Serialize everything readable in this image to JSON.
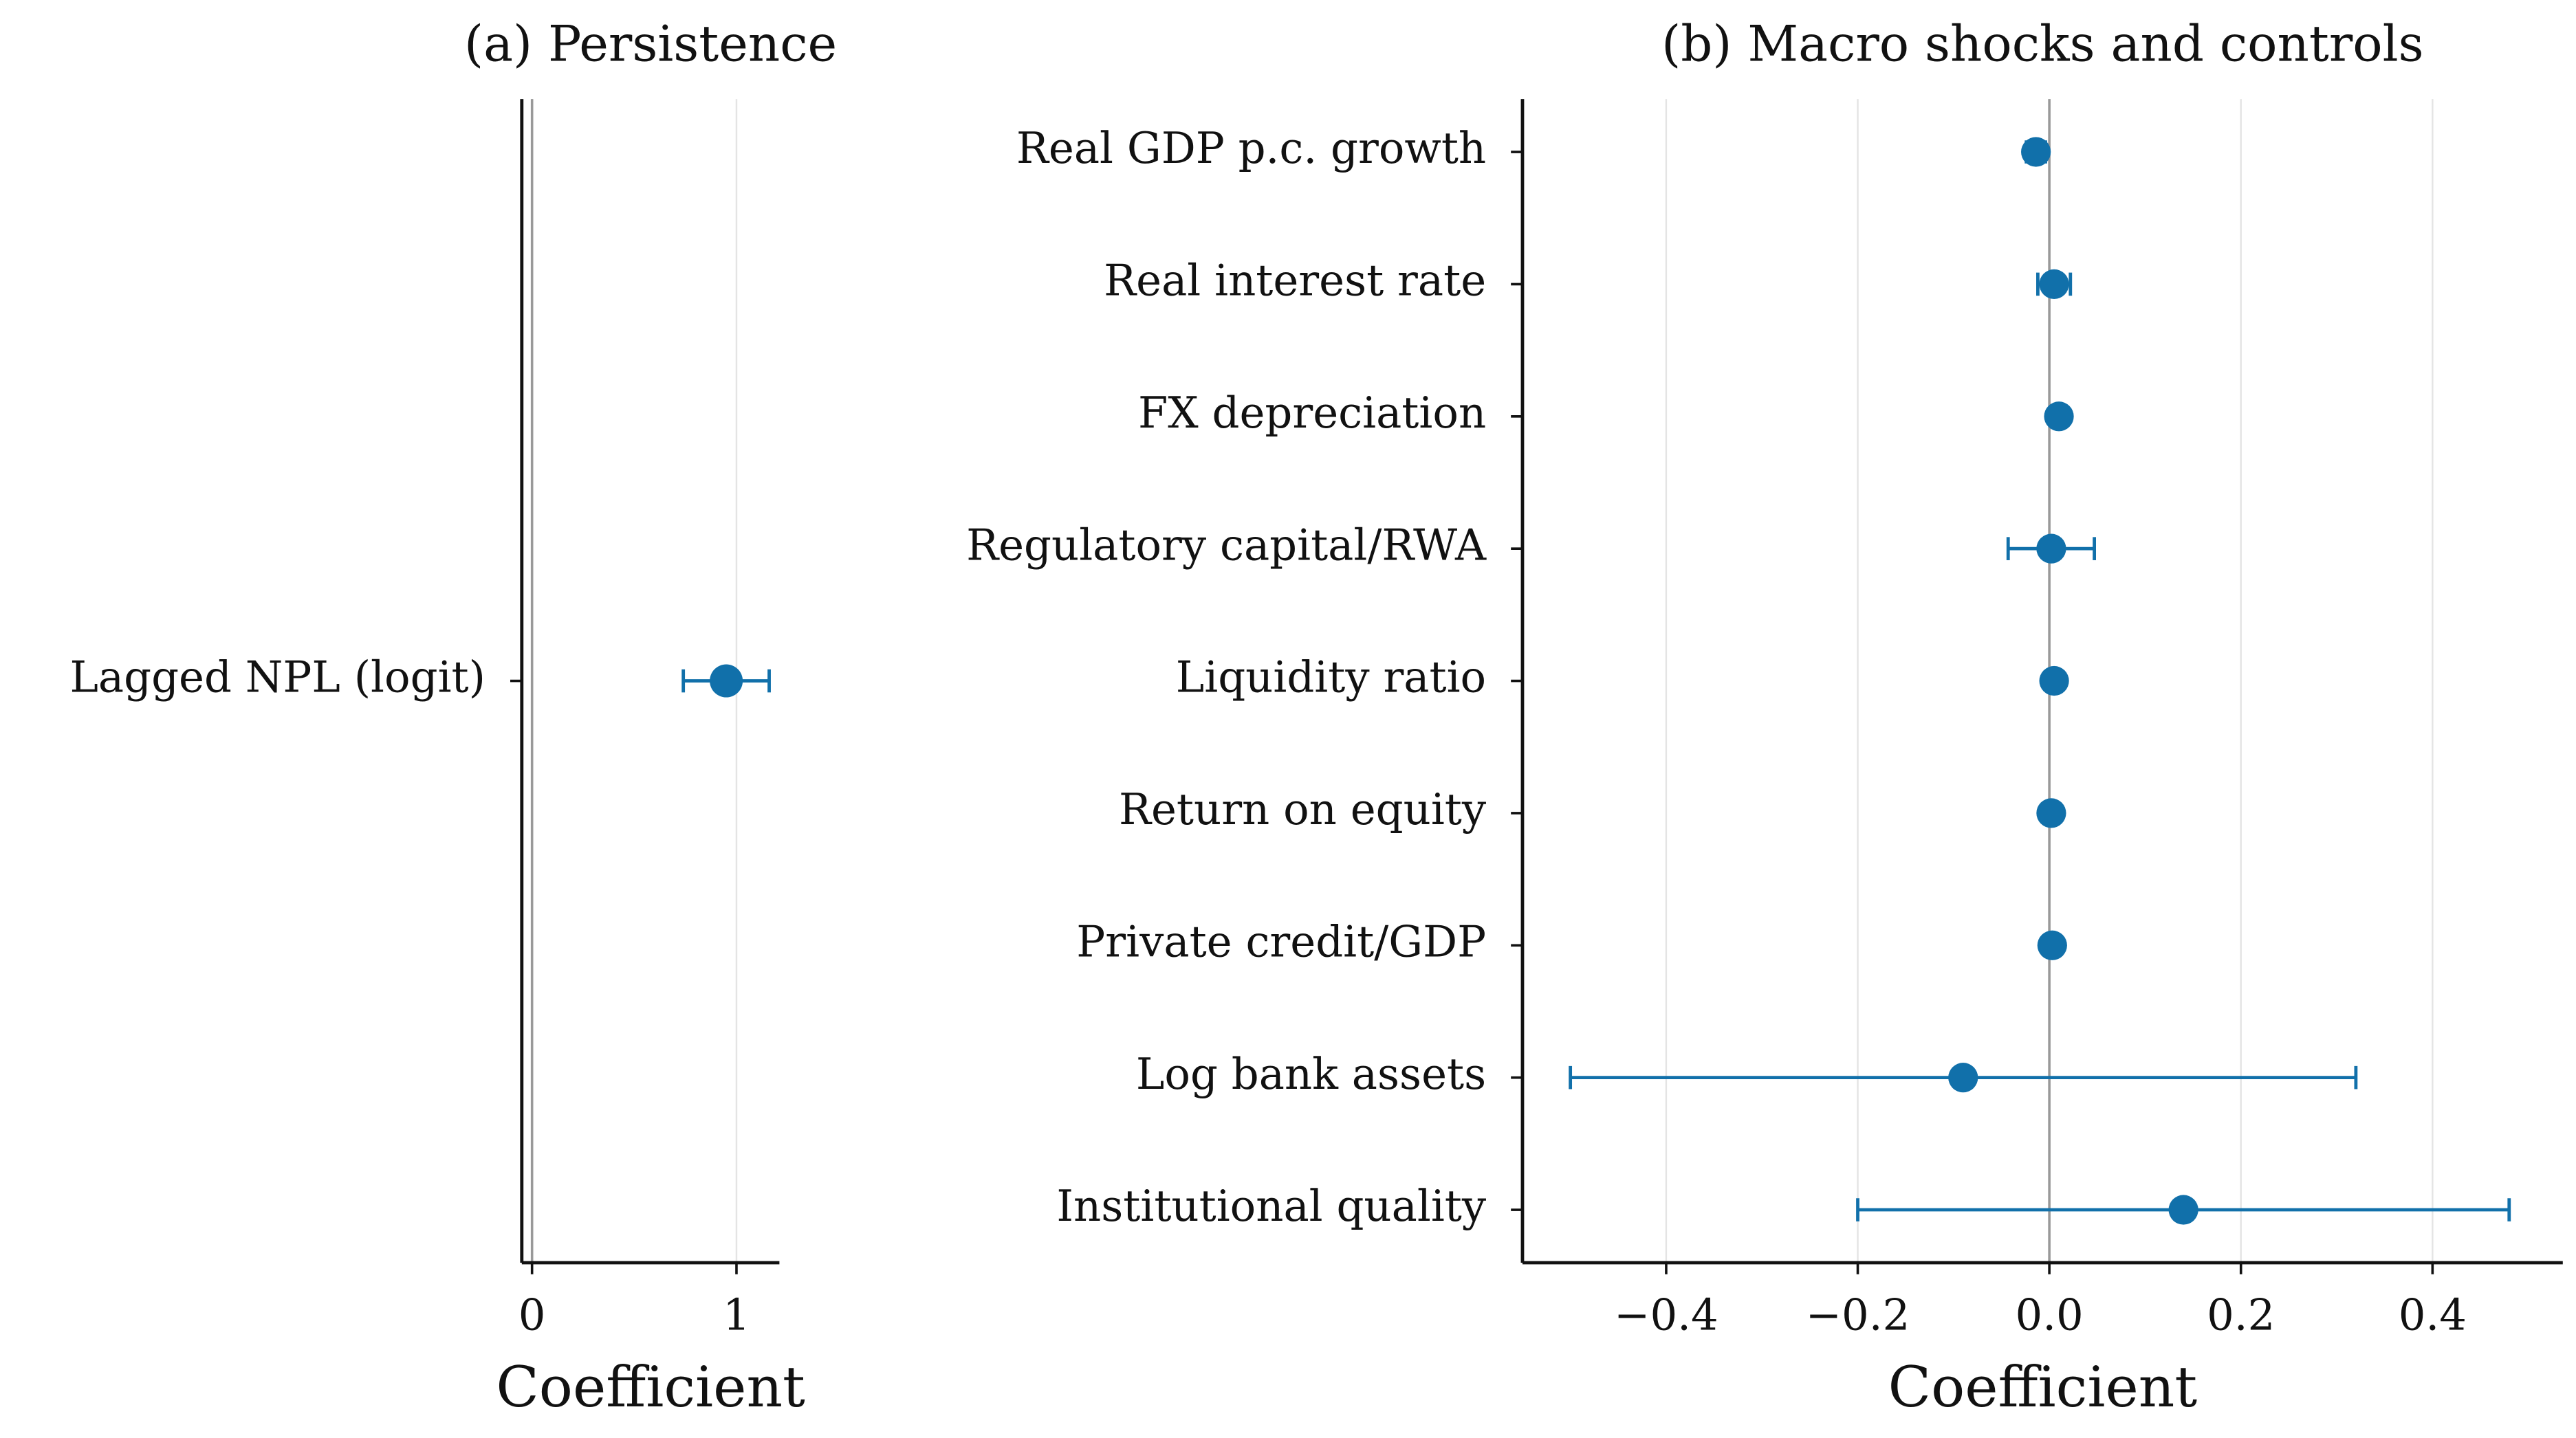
{
  "chart_data": [
    {
      "type": "errorbar",
      "title": "(a) Persistence",
      "xlabel": "Coefficient",
      "categories": [
        "Lagged NPL (logit)"
      ],
      "values": [
        0.95
      ],
      "errors": [
        0.21
      ],
      "color": "#1170aa",
      "xlim": [
        -0.05,
        1.21
      ],
      "xticks": [
        0,
        1
      ],
      "grid": true,
      "zero_line": true
    },
    {
      "type": "errorbar",
      "title": "(b) Macro shocks and controls",
      "xlabel": "Coefficient",
      "categories": [
        "Real GDP p.c. growth",
        "Real interest rate",
        "FX depreciation",
        "Regulatory capital/RWA",
        "Liquidity ratio",
        "Return on equity",
        "Private credit/GDP",
        "Log bank assets",
        "Institutional quality"
      ],
      "values": [
        -0.014,
        0.005,
        0.01,
        0.002,
        0.005,
        0.002,
        0.003,
        -0.09,
        0.14
      ],
      "errors": [
        0.01,
        0.017,
        0.005,
        0.045,
        0,
        0,
        0,
        0.41,
        0.34
      ],
      "color": "#1170aa",
      "xlim": [
        -0.55,
        0.536
      ],
      "xticks": [
        {
          "value": -0.4,
          "label": "−0.4"
        },
        {
          "value": -0.2,
          "label": "−0.2"
        },
        {
          "value": 0,
          "label": "0.0"
        },
        0.2,
        0.4
      ],
      "grid": true,
      "zero_line": true
    }
  ]
}
